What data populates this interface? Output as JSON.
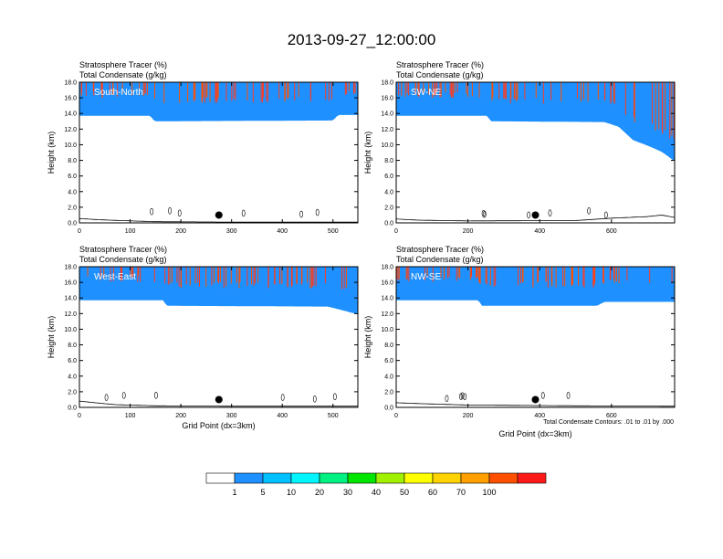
{
  "figure_title": "2013-09-27_12:00:00",
  "colors": {
    "levels": [
      "#ffffff",
      "#1e90ff",
      "#00c0ff",
      "#00f5ff",
      "#00f082",
      "#00e600",
      "#a0f000",
      "#ffff00",
      "#ffd200",
      "#ffa000",
      "#ff5000",
      "#ff1a1a"
    ]
  },
  "colorbar": {
    "labels": [
      "1",
      "5",
      "10",
      "20",
      "30",
      "40",
      "50",
      "60",
      "70",
      "100"
    ]
  },
  "contour_note": "Total Condensate Contours: .01 to .01 by .000",
  "chart_data": [
    {
      "type": "heatmap",
      "panel": "South-North",
      "title_lines": [
        "Stratosphere Tracer   (%)",
        "Total Condensate   (g/kg)"
      ],
      "ylabel": "Height (km)",
      "xlabel": "",
      "xlim": [
        0,
        549
      ],
      "ylim": [
        0,
        18
      ],
      "xticks": [
        "0",
        "100",
        "200",
        "300",
        "400",
        "500"
      ],
      "yticks": [
        "0.0",
        "2.0",
        "4.0",
        "6.0",
        "8.0",
        "10.0",
        "12.0",
        "14.0",
        "16.0",
        "18.0"
      ],
      "tropopause_km": [
        [
          0,
          15.6
        ],
        [
          140,
          15.6
        ],
        [
          148,
          14.9
        ],
        [
          500,
          15.0
        ],
        [
          510,
          15.7
        ],
        [
          549,
          15.7
        ]
      ],
      "terrain_km": [
        [
          0,
          0.55
        ],
        [
          40,
          0.4
        ],
        [
          80,
          0.3
        ],
        [
          150,
          0.15
        ],
        [
          300,
          0.1
        ],
        [
          549,
          0.1
        ]
      ],
      "marker_x": 275,
      "marker_y_km": 1.0
    },
    {
      "type": "heatmap",
      "panel": "SW-NE",
      "title_lines": [
        "Stratosphere Tracer   (%)",
        "Total Condensate   (g/kg)"
      ],
      "ylabel": "Height (km)",
      "xlabel": "",
      "xlim": [
        0,
        776
      ],
      "ylim": [
        0,
        18
      ],
      "xticks": [
        "0",
        "200",
        "400",
        "600"
      ],
      "yticks": [
        "0.0",
        "2.0",
        "4.0",
        "6.0",
        "8.0",
        "10.0",
        "12.0",
        "14.0",
        "16.0",
        "18.0"
      ],
      "tropopause_km": [
        [
          0,
          15.6
        ],
        [
          255,
          15.6
        ],
        [
          262,
          14.9
        ],
        [
          580,
          14.8
        ],
        [
          620,
          14.2
        ],
        [
          660,
          12.5
        ],
        [
          700,
          11.8
        ],
        [
          740,
          11.0
        ],
        [
          776,
          9.8
        ]
      ],
      "terrain_km": [
        [
          0,
          0.5
        ],
        [
          60,
          0.35
        ],
        [
          200,
          0.25
        ],
        [
          500,
          0.3
        ],
        [
          600,
          0.6
        ],
        [
          700,
          0.8
        ],
        [
          740,
          1.0
        ],
        [
          776,
          0.7
        ]
      ],
      "marker_x": 388,
      "marker_y_km": 1.0
    },
    {
      "type": "heatmap",
      "panel": "West-East",
      "title_lines": [
        "Stratosphere Tracer   (%)",
        "Total Condensate   (g/kg)"
      ],
      "ylabel": "Height (km)",
      "xlabel": "Grid Point (dx=3km)",
      "xlim": [
        0,
        549
      ],
      "ylim": [
        0,
        18
      ],
      "xticks": [
        "0",
        "100",
        "200",
        "300",
        "400",
        "500"
      ],
      "yticks": [
        "0.0",
        "2.0",
        "4.0",
        "6.0",
        "8.0",
        "10.0",
        "12.0",
        "14.0",
        "16.0",
        "18.0"
      ],
      "tropopause_km": [
        [
          0,
          15.6
        ],
        [
          165,
          15.6
        ],
        [
          172,
          14.9
        ],
        [
          490,
          14.8
        ],
        [
          520,
          14.3
        ],
        [
          549,
          13.8
        ]
      ],
      "terrain_km": [
        [
          0,
          0.8
        ],
        [
          30,
          0.6
        ],
        [
          70,
          0.35
        ],
        [
          150,
          0.2
        ],
        [
          300,
          0.15
        ],
        [
          549,
          0.15
        ]
      ],
      "marker_x": 275,
      "marker_y_km": 1.0
    },
    {
      "type": "heatmap",
      "panel": "NW-SE",
      "title_lines": [
        "Stratosphere Tracer   (%)",
        "Total Condensate   (g/kg)"
      ],
      "ylabel": "Height (km)",
      "xlabel": "Grid Point (dx=3km)",
      "xlim": [
        0,
        776
      ],
      "ylim": [
        0,
        18
      ],
      "xticks": [
        "0",
        "200",
        "400",
        "600"
      ],
      "yticks": [
        "0.0",
        "2.0",
        "4.0",
        "6.0",
        "8.0",
        "10.0",
        "12.0",
        "14.0",
        "16.0",
        "18.0"
      ],
      "tropopause_km": [
        [
          0,
          15.6
        ],
        [
          230,
          15.6
        ],
        [
          238,
          14.9
        ],
        [
          560,
          14.9
        ],
        [
          580,
          15.4
        ],
        [
          776,
          15.4
        ]
      ],
      "terrain_km": [
        [
          0,
          0.6
        ],
        [
          50,
          0.5
        ],
        [
          200,
          0.3
        ],
        [
          500,
          0.2
        ],
        [
          776,
          0.15
        ]
      ],
      "marker_x": 388,
      "marker_y_km": 1.0
    }
  ]
}
